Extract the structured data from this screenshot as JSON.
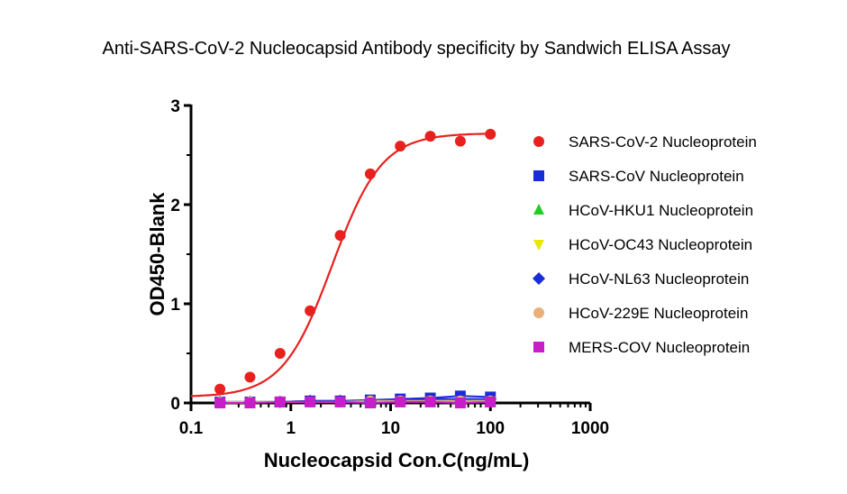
{
  "chart_data": {
    "type": "scatter",
    "title": "Anti-SARS-CoV-2 Nucleocapsid Antibody specificity by Sandwich ELISA Assay",
    "xlabel": "Nucleocapsid Con.C(ng/mL)",
    "ylabel": "OD450-Blank",
    "xscale": "log",
    "xlim": [
      0.1,
      1000
    ],
    "ylim": [
      0,
      3
    ],
    "xticks": [
      {
        "value": 0.1,
        "label": "0.1"
      },
      {
        "value": 1,
        "label": "1"
      },
      {
        "value": 10,
        "label": "10"
      },
      {
        "value": 100,
        "label": "100"
      },
      {
        "value": 1000,
        "label": "1000"
      }
    ],
    "yticks": [
      {
        "value": 0,
        "label": "0"
      },
      {
        "value": 1,
        "label": "1"
      },
      {
        "value": 2,
        "label": "2"
      },
      {
        "value": 3,
        "label": "3"
      }
    ],
    "legend_position": "right",
    "fit_curve": {
      "series": "SARS-CoV-2 Nucleoprotein",
      "color": "#e8201e",
      "bottom": 0.06,
      "top": 2.72,
      "ec50": 2.6,
      "hill": 1.75
    },
    "series": [
      {
        "name": "SARS-CoV-2 Nucleoprotein",
        "marker": "circle",
        "color": "#e8201e",
        "x": [
          0.195,
          0.39,
          0.78,
          1.56,
          3.125,
          6.25,
          12.5,
          25,
          50,
          100
        ],
        "y": [
          0.14,
          0.26,
          0.5,
          0.93,
          1.69,
          2.31,
          2.59,
          2.69,
          2.64,
          2.71
        ]
      },
      {
        "name": "SARS-CoV Nucleoprotein",
        "marker": "square",
        "color": "#1a2bd8",
        "x": [
          0.195,
          0.39,
          0.78,
          1.56,
          3.125,
          6.25,
          12.5,
          25,
          50,
          100
        ],
        "y": [
          0.01,
          0.01,
          0.01,
          0.02,
          0.02,
          0.03,
          0.04,
          0.05,
          0.07,
          0.06
        ]
      },
      {
        "name": "HCoV-HKU1 Nucleoprotein",
        "marker": "triangle-up",
        "color": "#22cc22",
        "x": [
          0.195,
          0.39,
          0.78,
          1.56,
          3.125,
          6.25,
          12.5,
          25,
          50,
          100
        ],
        "y": [
          0.01,
          0.01,
          0.01,
          0.01,
          0.01,
          0.02,
          0.02,
          0.02,
          0.03,
          0.03
        ]
      },
      {
        "name": "HCoV-OC43 Nucleoprotein",
        "marker": "triangle-down",
        "color": "#e8e800",
        "x": [
          0.195,
          0.39,
          0.78,
          1.56,
          3.125,
          6.25,
          12.5,
          25,
          50,
          100
        ],
        "y": [
          0.01,
          0.01,
          0.01,
          0.01,
          0.01,
          0.01,
          0.02,
          0.02,
          0.02,
          0.02
        ]
      },
      {
        "name": "HCoV-NL63 Nucleoprotein",
        "marker": "diamond",
        "color": "#1a2bd8",
        "x": [
          0.195,
          0.39,
          0.78,
          1.56,
          3.125,
          6.25,
          12.5,
          25,
          50,
          100
        ],
        "y": [
          0.01,
          0.01,
          0.01,
          0.02,
          0.02,
          0.02,
          0.03,
          0.04,
          0.04,
          0.04
        ]
      },
      {
        "name": "HCoV-229E Nucleoprotein",
        "marker": "circle",
        "color": "#e8b07a",
        "x": [
          0.195,
          0.39,
          0.78,
          1.56,
          3.125,
          6.25,
          12.5,
          25,
          50,
          100
        ],
        "y": [
          0.01,
          0.01,
          0.01,
          0.01,
          0.01,
          0.02,
          0.02,
          0.02,
          0.02,
          0.02
        ]
      },
      {
        "name": "MERS-COV Nucleoprotein",
        "marker": "square",
        "color": "#c71fc7",
        "x": [
          0.195,
          0.39,
          0.78,
          1.56,
          3.125,
          6.25,
          12.5,
          25,
          50,
          100
        ],
        "y": [
          0.0,
          0.0,
          0.01,
          0.01,
          0.01,
          0.0,
          0.01,
          0.01,
          0.0,
          0.01
        ]
      }
    ]
  }
}
